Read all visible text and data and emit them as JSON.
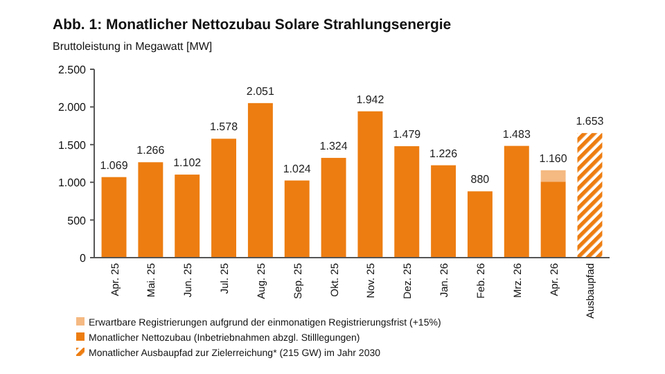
{
  "chart_data": {
    "type": "bar",
    "title": "Abb. 1: Monatlicher Nettozubau Solare Strahlungsenergie",
    "subtitle": "Bruttoleistung in Megawatt [MW]",
    "categories": [
      "Apr. 25",
      "Mai. 25",
      "Jun. 25",
      "Jul. 25",
      "Aug. 25",
      "Sep. 25",
      "Okt. 25",
      "Nov. 25",
      "Dez. 25",
      "Jan. 26",
      "Feb. 26",
      "Mrz. 26",
      "Apr. 26",
      "Ausbaupfad"
    ],
    "stacked": true,
    "series": [
      {
        "name": "Monatlicher Nettozubau (Inbetriebnahmen abzgl. Stilllegungen)",
        "color": "#ed7d11",
        "values": [
          1069,
          1266,
          1102,
          1578,
          2051,
          1024,
          1324,
          1942,
          1479,
          1226,
          880,
          1483,
          1009,
          null
        ]
      },
      {
        "name": "Erwartbare Registrierungen aufgrund der einmonatigen Registrierungsfrist (+15%)",
        "color": "#f5b982",
        "values": [
          null,
          null,
          null,
          null,
          null,
          null,
          null,
          null,
          null,
          null,
          null,
          null,
          151,
          null
        ]
      },
      {
        "name": "Monatlicher Ausbaupfad zur Zielerreichung* (215 GW) im Jahr 2030",
        "color": "#ed7d11",
        "values": [
          null,
          null,
          null,
          null,
          null,
          null,
          null,
          null,
          null,
          null,
          null,
          null,
          null,
          1653
        ]
      }
    ],
    "totals": [
      "1.069",
      "1.266",
      "1.102",
      "1.578",
      "2.051",
      "1.024",
      "1.324",
      "1.942",
      "1.479",
      "1.226",
      "880",
      "1.483",
      "1.160",
      "1.653"
    ],
    "ylim": [
      0,
      2500
    ],
    "yticks": [
      0,
      500,
      {
        "value": 1000,
        "label": "1.000"
      },
      {
        "value": 1500,
        "label": "1.500"
      },
      {
        "value": 2000,
        "label": "2.000"
      },
      {
        "value": 2500,
        "label": "2.500"
      }
    ],
    "grid": false,
    "legend": "bottom left"
  }
}
